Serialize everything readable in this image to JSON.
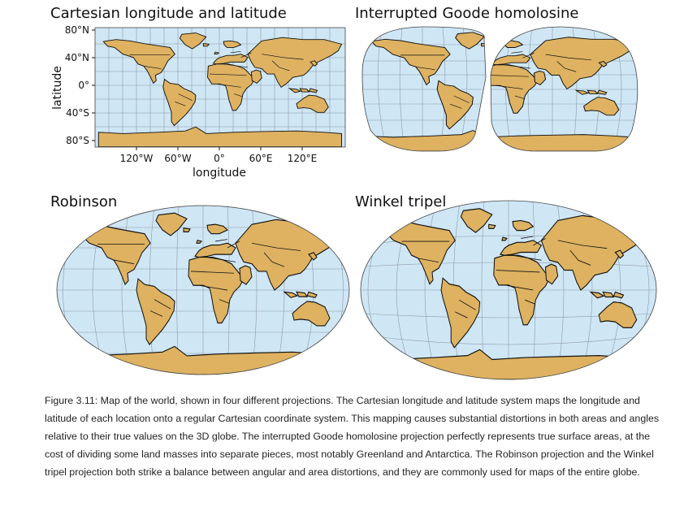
{
  "panels": [
    {
      "id": "cartesian",
      "title": "Cartesian longitude and latitude",
      "projection": "equirectangular",
      "x_axis": {
        "label": "longitude",
        "ticks": [
          "120°W",
          "60°W",
          "0°",
          "60°E",
          "120°E"
        ]
      },
      "y_axis": {
        "label": "latitude",
        "ticks": [
          "80°N",
          "40°N",
          "0°",
          "40°S",
          "80°S"
        ]
      }
    },
    {
      "id": "goode",
      "title": "Interrupted Goode homolosine",
      "projection": "interrupted-goode-homolosine"
    },
    {
      "id": "robinson",
      "title": "Robinson",
      "projection": "robinson"
    },
    {
      "id": "winkel",
      "title": "Winkel tripel",
      "projection": "winkel-tripel"
    }
  ],
  "colors": {
    "ocean": "#cfe6f5",
    "land": "#deb261",
    "graticule": "#8e9aa6",
    "outline": "#111111"
  },
  "caption": "Figure 3.11: Map of the world, shown in four different projections. The Cartesian longitude and latitude system maps the longitude and latitude of each location onto a regular Cartesian coordinate system. This mapping causes substantial distortions in both areas and angles relative to their true values on the 3D globe. The interrupted Goode homolosine projection perfectly represents true surface areas, at the cost of dividing some land masses into separate pieces, most notably Greenland and Antarctica. The Robinson projection and the Winkel tripel projection both strike a balance between angular and area distortions, and they are commonly used for maps of the entire globe."
}
